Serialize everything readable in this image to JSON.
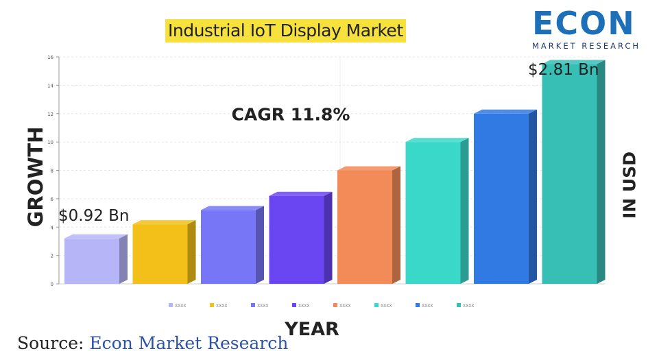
{
  "title": "Industrial IoT Display Market",
  "logo": {
    "top": "ECON",
    "bottom": "MARKET RESEARCH"
  },
  "source": {
    "prefix": "Source:",
    "name": "Econ Market Research"
  },
  "chart_data": {
    "type": "bar",
    "title": "Industrial IoT Display Market",
    "xlabel": "YEAR",
    "ylabel": "GROWTH",
    "right_label": "IN USD",
    "ylim": [
      0,
      16
    ],
    "yticks": [
      0,
      2,
      4,
      6,
      8,
      10,
      12,
      14,
      16
    ],
    "grid": true,
    "legend_position": "bottom",
    "categories": [
      "XXXX",
      "XXXX",
      "XXXX",
      "XXXX",
      "XXXX",
      "XXXX",
      "XXXX",
      "XXXX"
    ],
    "values": [
      3.2,
      4.2,
      5.2,
      6.2,
      8.0,
      10.0,
      12.0,
      15.5
    ],
    "colors": [
      "#b6b5f7",
      "#f2c019",
      "#7776f7",
      "#6a46f3",
      "#f28b58",
      "#3ad8c9",
      "#3179e3",
      "#37beb5"
    ],
    "annotations": {
      "cagr": "CAGR 11.8%",
      "start_value": "$0.92 Bn",
      "end_value": "$2.81 Bn"
    }
  }
}
